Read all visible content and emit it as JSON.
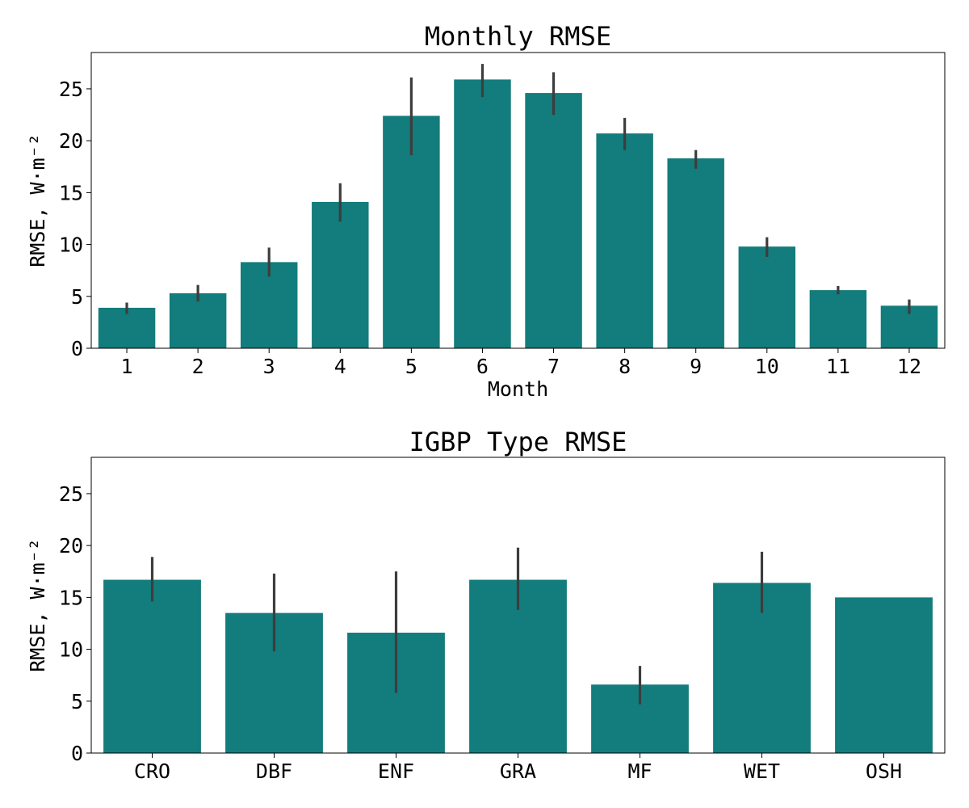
{
  "colors": {
    "bar": "#137c7c",
    "errorbar": "#3d3d3d",
    "axis": "#000000"
  },
  "chart_data": [
    {
      "type": "bar",
      "title": "Monthly RMSE",
      "xlabel": "Month",
      "ylabel": "RMSE, W·m⁻²",
      "ylim": [
        0,
        28.5
      ],
      "yticks": [
        "0",
        "5",
        "10",
        "15",
        "20",
        "25"
      ],
      "categories": [
        "1",
        "2",
        "3",
        "4",
        "5",
        "6",
        "7",
        "8",
        "9",
        "10",
        "11",
        "12"
      ],
      "values": [
        3.9,
        5.3,
        8.3,
        14.1,
        22.4,
        25.9,
        24.6,
        20.7,
        18.3,
        9.8,
        5.6,
        4.1
      ],
      "error_low": [
        3.3,
        4.5,
        6.9,
        12.2,
        18.6,
        24.2,
        22.5,
        19.1,
        17.3,
        8.8,
        5.2,
        3.3
      ],
      "error_high": [
        4.4,
        6.1,
        9.7,
        15.9,
        26.1,
        27.4,
        26.6,
        22.2,
        19.1,
        10.7,
        6.0,
        4.7
      ],
      "grid": false,
      "legend": "none"
    },
    {
      "type": "bar",
      "title": "IGBP Type RMSE",
      "xlabel": "",
      "ylabel": "RMSE, W·m⁻²",
      "ylim": [
        0,
        28.5
      ],
      "yticks": [
        "0",
        "5",
        "10",
        "15",
        "20",
        "25"
      ],
      "categories": [
        "CRO",
        "DBF",
        "ENF",
        "GRA",
        "MF",
        "WET",
        "OSH"
      ],
      "values": [
        16.7,
        13.5,
        11.6,
        16.7,
        6.6,
        16.4,
        15.0
      ],
      "error_low": [
        14.6,
        9.8,
        5.8,
        13.8,
        4.7,
        13.5,
        null
      ],
      "error_high": [
        18.9,
        17.3,
        17.5,
        19.8,
        8.4,
        19.4,
        null
      ],
      "grid": false,
      "legend": "none"
    }
  ]
}
